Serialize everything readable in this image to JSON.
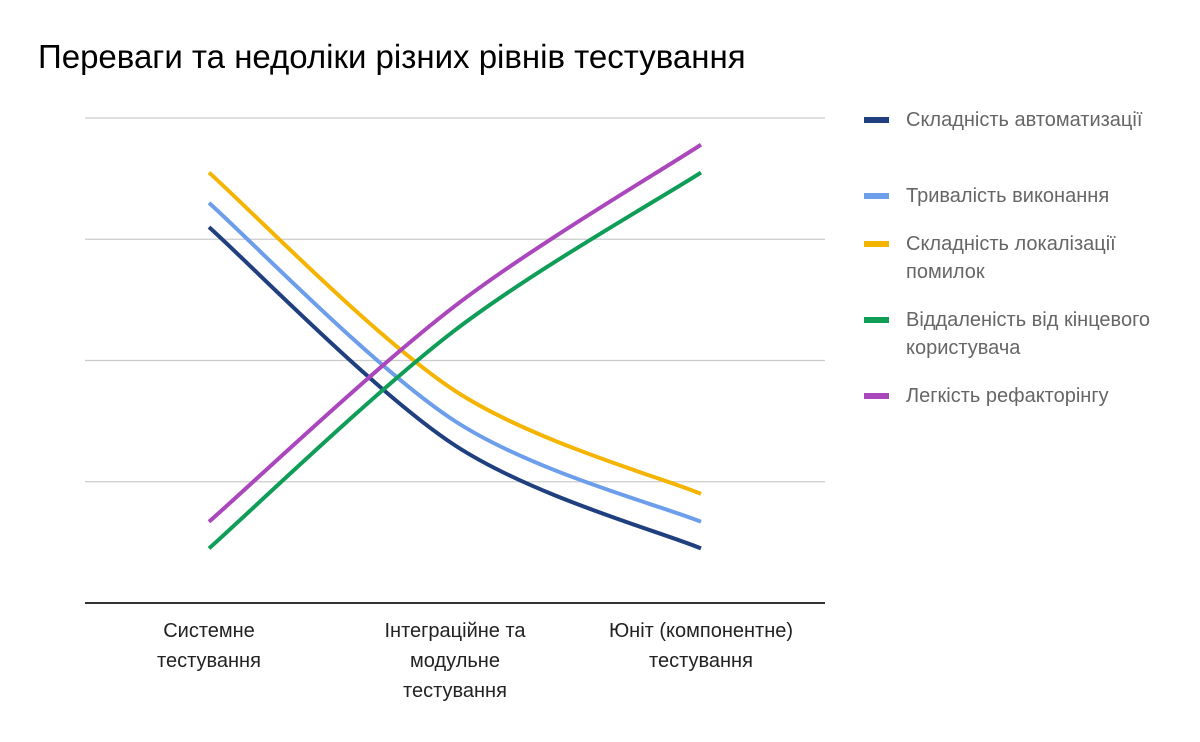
{
  "chart_data": {
    "type": "line",
    "title": "Переваги та недоліки різних рівнів тестування",
    "xlabel": "",
    "ylabel": "",
    "categories": [
      "Системне тестування",
      "Інтеграційне та модульне тестування",
      "Юніт (компонентне) тестування"
    ],
    "ylim": [
      0,
      4
    ],
    "grid": true,
    "legend_position": "right",
    "smooth": true,
    "series": [
      {
        "name": "Складність автоматизації",
        "color": "#1f3f7f",
        "values": [
          3.1,
          1.3,
          0.45
        ]
      },
      {
        "name": "Тривалість виконання",
        "color": "#6d9eeb",
        "values": [
          3.3,
          1.5,
          0.67
        ]
      },
      {
        "name": "Складність локалізації помилок",
        "color": "#f4b400",
        "values": [
          3.55,
          1.75,
          0.9
        ]
      },
      {
        "name": "Віддаленість від кінцевого користувача",
        "color": "#0f9d58",
        "values": [
          0.45,
          2.25,
          3.55
        ]
      },
      {
        "name": "Легкість рефакторінгу",
        "color": "#ab47bc",
        "values": [
          0.67,
          2.45,
          3.78
        ]
      }
    ]
  }
}
